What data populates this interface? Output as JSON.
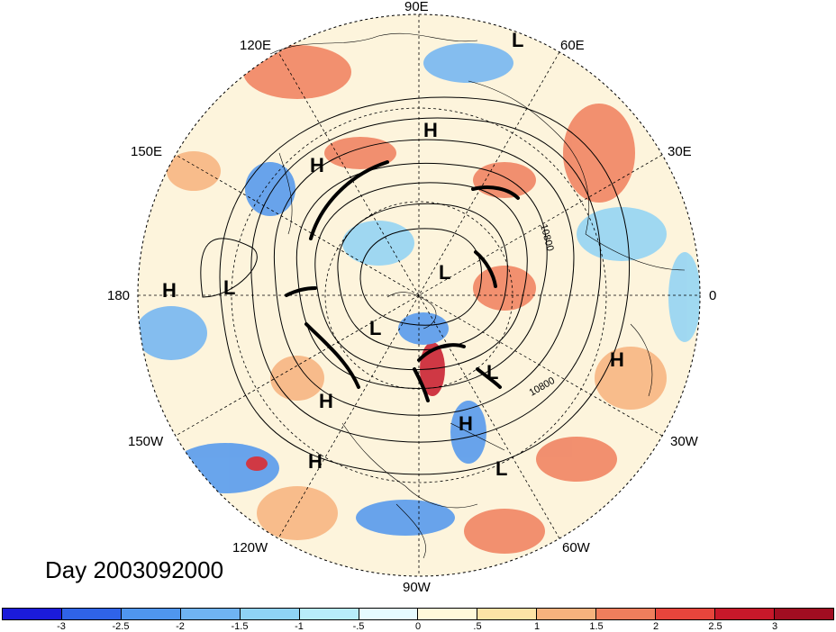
{
  "title": "Day 2003092000",
  "longitude_labels": [
    "90E",
    "60E",
    "30E",
    "0",
    "30W",
    "60W",
    "90W",
    "120W",
    "150W",
    "180",
    "150E",
    "120E"
  ],
  "contour_labels": [
    "10800",
    "10800"
  ],
  "pressure_systems": [
    {
      "label": "H",
      "type": "high"
    },
    {
      "label": "H",
      "type": "high"
    },
    {
      "label": "H",
      "type": "high"
    },
    {
      "label": "H",
      "type": "high"
    },
    {
      "label": "H",
      "type": "high"
    },
    {
      "label": "H",
      "type": "high"
    },
    {
      "label": "H",
      "type": "high"
    },
    {
      "label": "L",
      "type": "low"
    },
    {
      "label": "L",
      "type": "low"
    },
    {
      "label": "L",
      "type": "low"
    },
    {
      "label": "L",
      "type": "low"
    },
    {
      "label": "L",
      "type": "low"
    },
    {
      "label": "L",
      "type": "low"
    }
  ],
  "colorbar": {
    "ticks": [
      "-3",
      "-2.5",
      "-2",
      "-1.5",
      "-1",
      "-.5",
      "0",
      ".5",
      "1",
      "1.5",
      "2",
      "2.5",
      "3"
    ],
    "colors": [
      "#1b1bd9",
      "#2f63e8",
      "#4f96ee",
      "#6fb3f2",
      "#8fd3f5",
      "#b8ecfa",
      "#e6fbff",
      "#fff9d9",
      "#fde3a6",
      "#f7b27d",
      "#f07e5c",
      "#e7453c",
      "#c8182a",
      "#a10d21"
    ]
  }
}
